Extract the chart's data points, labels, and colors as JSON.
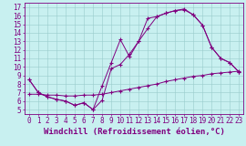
{
  "xlabel": "Windchill (Refroidissement éolien,°C)",
  "bg_color": "#c8f0f0",
  "line_color": "#800080",
  "grid_color": "#99cccc",
  "xlim": [
    -0.5,
    23.5
  ],
  "ylim": [
    4.5,
    17.5
  ],
  "xticks": [
    0,
    1,
    2,
    3,
    4,
    5,
    6,
    7,
    8,
    9,
    10,
    11,
    12,
    13,
    14,
    15,
    16,
    17,
    18,
    19,
    20,
    21,
    22,
    23
  ],
  "yticks": [
    5,
    6,
    7,
    8,
    9,
    10,
    11,
    12,
    13,
    14,
    15,
    16,
    17
  ],
  "line1_x": [
    0,
    1,
    2,
    3,
    4,
    5,
    6,
    7,
    8,
    9,
    10,
    11,
    12,
    13,
    14,
    15,
    16,
    17,
    18,
    19,
    20,
    21,
    22,
    23
  ],
  "line1_y": [
    8.5,
    7.0,
    6.5,
    6.2,
    6.0,
    5.5,
    5.8,
    5.0,
    7.8,
    10.5,
    13.2,
    11.2,
    13.0,
    15.7,
    15.9,
    16.3,
    16.6,
    16.8,
    16.1,
    14.9,
    12.3,
    11.0,
    10.5,
    9.4
  ],
  "line2_x": [
    0,
    1,
    2,
    3,
    4,
    5,
    6,
    7,
    8,
    9,
    10,
    11,
    12,
    13,
    14,
    15,
    16,
    17,
    18,
    19,
    20,
    21,
    22,
    23
  ],
  "line2_y": [
    8.5,
    7.0,
    6.5,
    6.2,
    6.0,
    5.5,
    5.8,
    5.0,
    6.1,
    9.8,
    10.3,
    11.5,
    13.0,
    14.5,
    15.9,
    16.3,
    16.6,
    16.7,
    16.1,
    14.9,
    12.3,
    11.0,
    10.5,
    9.4
  ],
  "line3_x": [
    0,
    1,
    2,
    3,
    4,
    5,
    6,
    7,
    8,
    9,
    10,
    11,
    12,
    13,
    14,
    15,
    16,
    17,
    18,
    19,
    20,
    21,
    22,
    23
  ],
  "line3_y": [
    6.8,
    6.8,
    6.7,
    6.7,
    6.6,
    6.6,
    6.7,
    6.7,
    6.8,
    7.0,
    7.2,
    7.4,
    7.6,
    7.8,
    8.0,
    8.3,
    8.5,
    8.7,
    8.9,
    9.0,
    9.2,
    9.3,
    9.4,
    9.5
  ],
  "font_size_label": 6.5,
  "font_size_tick": 5.5,
  "marker": "+"
}
